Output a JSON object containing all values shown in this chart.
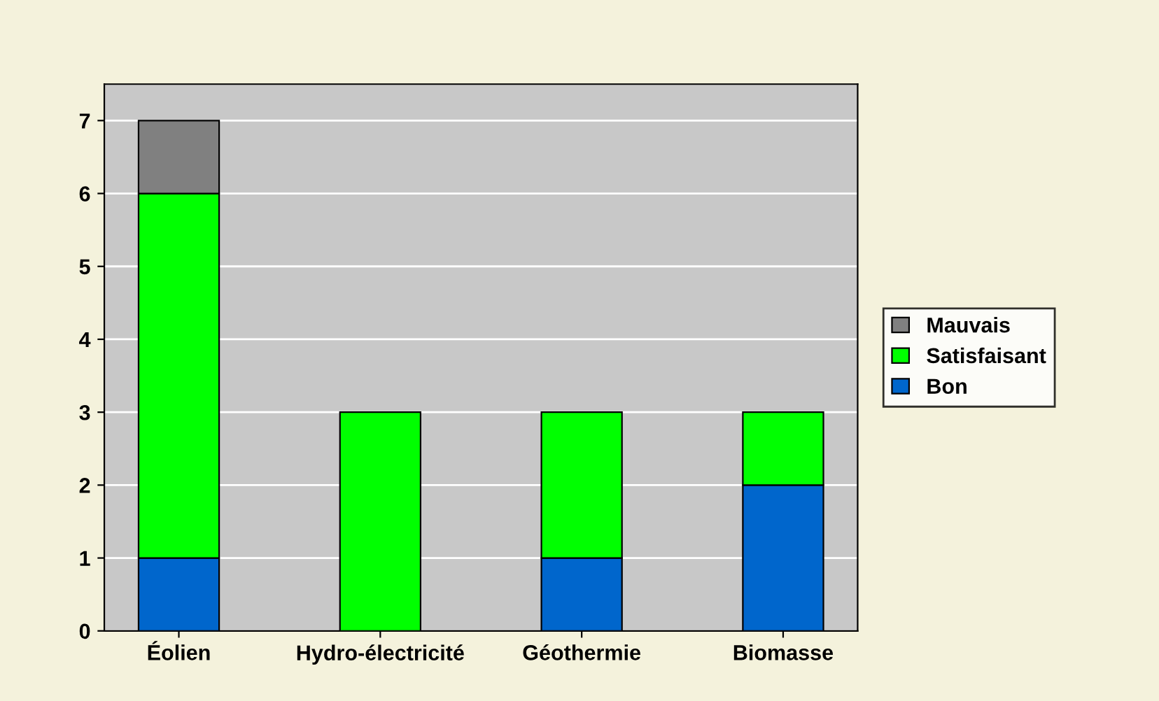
{
  "chart_data": {
    "type": "bar",
    "stacked": true,
    "categories": [
      "Éolien",
      "Hydro-électricité",
      "Géothermie",
      "Biomasse"
    ],
    "series": [
      {
        "name": "Bon",
        "color": "#0066cc",
        "values": [
          1,
          null,
          1,
          2
        ]
      },
      {
        "name": "Satisfaisant",
        "color": "#00ff00",
        "values": [
          5,
          3,
          2,
          1
        ]
      },
      {
        "name": "Mauvais",
        "color": "#808080",
        "values": [
          1,
          null,
          null,
          null
        ]
      }
    ],
    "ylim": [
      0,
      7.5
    ],
    "yticks": [
      0,
      1,
      2,
      3,
      4,
      5,
      6,
      7
    ],
    "grid": "y",
    "legend": "right"
  }
}
